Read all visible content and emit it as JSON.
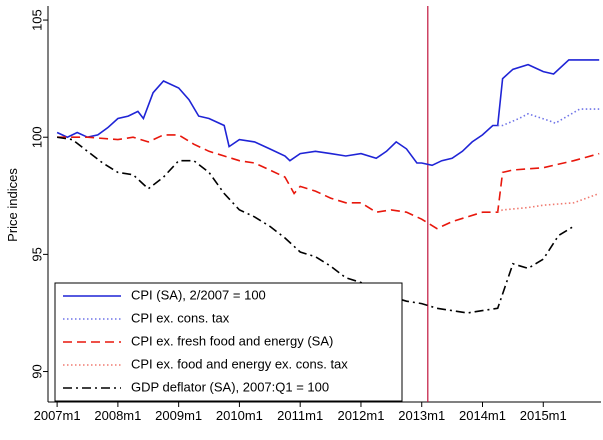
{
  "chart_data": {
    "type": "line",
    "y_label": "Price indices",
    "xlim": [
      2006.85,
      2015.95
    ],
    "ylim": [
      88.7,
      105.6
    ],
    "xticks": [
      {
        "value": 2007,
        "label": "2007m1"
      },
      {
        "value": 2008,
        "label": "2008m1"
      },
      {
        "value": 2009,
        "label": "2009m1"
      },
      {
        "value": 2010,
        "label": "2010m1"
      },
      {
        "value": 2011,
        "label": "2011m1"
      },
      {
        "value": 2012,
        "label": "2012m1"
      },
      {
        "value": 2013,
        "label": "2013m1"
      },
      {
        "value": 2014,
        "label": "2014m1"
      },
      {
        "value": 2015,
        "label": "2015m1"
      }
    ],
    "yticks": [
      90,
      95,
      100,
      105
    ],
    "vline": {
      "value": 2013.1,
      "color": "#c0143c"
    },
    "legend": "bottom-left",
    "series": [
      {
        "name": "CPI (SA), 2/2007 = 100",
        "color": "#1f24d6",
        "style": "solid",
        "x": [
          2007.0,
          2007.17,
          2007.33,
          2007.5,
          2007.67,
          2007.83,
          2008.0,
          2008.17,
          2008.33,
          2008.42,
          2008.58,
          2008.75,
          2009.0,
          2009.17,
          2009.33,
          2009.5,
          2009.75,
          2009.83,
          2010.0,
          2010.25,
          2010.5,
          2010.75,
          2010.83,
          2011.0,
          2011.25,
          2011.5,
          2011.75,
          2012.0,
          2012.25,
          2012.42,
          2012.58,
          2012.75,
          2012.92,
          2013.0,
          2013.17,
          2013.33,
          2013.5,
          2013.67,
          2013.83,
          2014.0,
          2014.17,
          2014.25,
          2014.33,
          2014.5,
          2014.75,
          2015.0,
          2015.17,
          2015.42,
          2015.92
        ],
        "values": [
          100.2,
          100.0,
          100.2,
          100.0,
          100.1,
          100.4,
          100.8,
          100.9,
          101.1,
          100.8,
          101.9,
          102.4,
          102.1,
          101.6,
          100.9,
          100.8,
          100.5,
          99.6,
          99.9,
          99.8,
          99.5,
          99.2,
          99.0,
          99.3,
          99.4,
          99.3,
          99.2,
          99.3,
          99.1,
          99.4,
          99.8,
          99.5,
          98.9,
          98.9,
          98.8,
          99.0,
          99.1,
          99.4,
          99.8,
          100.1,
          100.5,
          100.5,
          102.5,
          102.9,
          103.1,
          102.8,
          102.7,
          103.3,
          103.3
        ]
      },
      {
        "name": "CPI ex. cons. tax",
        "color": "#6f74e8",
        "style": "dot",
        "x": [
          2014.25,
          2014.33,
          2014.6,
          2014.75,
          2015.1,
          2015.2,
          2015.6,
          2015.92
        ],
        "values": [
          100.5,
          100.5,
          100.8,
          101.0,
          100.7,
          100.6,
          101.2,
          101.2
        ]
      },
      {
        "name": "CPI ex. fresh food and energy (SA)",
        "color": "#e8170c",
        "style": "dash",
        "x": [
          2007.0,
          2007.5,
          2008.0,
          2008.25,
          2008.5,
          2008.75,
          2009.0,
          2009.25,
          2009.5,
          2009.75,
          2010.0,
          2010.25,
          2010.5,
          2010.75,
          2010.9,
          2011.0,
          2011.25,
          2011.5,
          2011.75,
          2012.0,
          2012.25,
          2012.5,
          2012.75,
          2013.0,
          2013.25,
          2013.5,
          2013.75,
          2014.0,
          2014.25,
          2014.33,
          2014.5,
          2015.0,
          2015.5,
          2015.92
        ],
        "values": [
          100.0,
          100.0,
          99.9,
          100.0,
          99.8,
          100.1,
          100.1,
          99.7,
          99.4,
          99.2,
          99.0,
          98.9,
          98.6,
          98.3,
          97.6,
          97.9,
          97.7,
          97.4,
          97.2,
          97.2,
          96.8,
          96.9,
          96.8,
          96.5,
          96.1,
          96.4,
          96.6,
          96.8,
          96.8,
          98.5,
          98.6,
          98.7,
          99.0,
          99.3
        ]
      },
      {
        "name": "CPI ex. food and energy ex. cons. tax",
        "color": "#f07a70",
        "style": "dot",
        "x": [
          2014.25,
          2014.33,
          2014.75,
          2015.0,
          2015.5,
          2015.92
        ],
        "values": [
          96.8,
          96.9,
          97.0,
          97.1,
          97.2,
          97.6
        ]
      },
      {
        "name": "GDP deflator (SA), 2007:Q1 = 100",
        "color": "#000000",
        "style": "dashdot",
        "x": [
          2007.0,
          2007.25,
          2007.5,
          2007.75,
          2008.0,
          2008.25,
          2008.5,
          2008.75,
          2009.0,
          2009.25,
          2009.5,
          2009.75,
          2010.0,
          2010.25,
          2010.5,
          2010.75,
          2011.0,
          2011.25,
          2011.5,
          2011.75,
          2012.0,
          2012.25,
          2012.5,
          2012.75,
          2013.0,
          2013.25,
          2013.5,
          2013.75,
          2014.0,
          2014.25,
          2014.5,
          2014.75,
          2015.0,
          2015.25,
          2015.5
        ],
        "values": [
          100.0,
          99.9,
          99.4,
          98.9,
          98.5,
          98.4,
          97.8,
          98.3,
          99.0,
          99.0,
          98.5,
          97.6,
          96.9,
          96.6,
          96.2,
          95.7,
          95.1,
          94.9,
          94.5,
          94.0,
          93.8,
          93.5,
          93.2,
          93.0,
          92.9,
          92.7,
          92.6,
          92.5,
          92.6,
          92.7,
          94.6,
          94.4,
          94.8,
          95.8,
          96.2
        ]
      }
    ]
  }
}
